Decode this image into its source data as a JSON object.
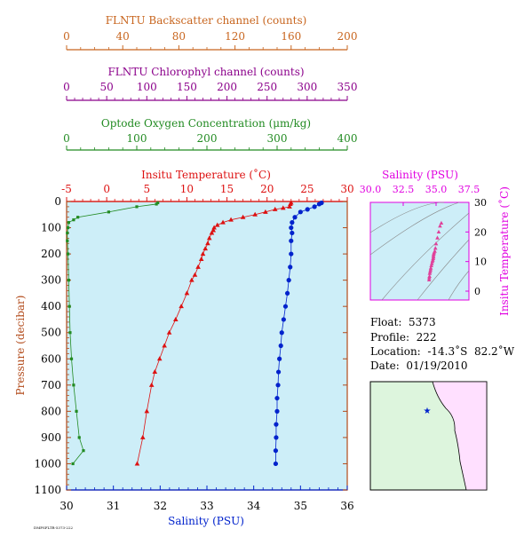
{
  "colors": {
    "backscatter": "#c8651e",
    "chlorophyll": "#8b008b",
    "oxygen": "#228b22",
    "temperature": "#dd1111",
    "salinity": "#0022cc",
    "pressure": "#b24a1a",
    "ts_axis": "#e000e0",
    "ts_points": "#e0409a",
    "plot_bg": "#cdeef8",
    "land": "#ddf5dd",
    "ocean": "#ffe0ff"
  },
  "info": {
    "float": "Float:  5373",
    "profile": "Profile:  222",
    "location": "Location:  -14.3˚S  82.2˚W",
    "date": "Date:  01/19/2010"
  },
  "footer": "DMPSFLTR-5373-222",
  "chart_data": [
    {
      "type": "axis",
      "title": "FLNTU Backscatter channel (counts)",
      "ticks": [
        "0",
        "40",
        "80",
        "120",
        "160",
        "200"
      ],
      "range": [
        0,
        200
      ]
    },
    {
      "type": "axis",
      "title": "FLNTU Chlorophyl channel (counts)",
      "ticks": [
        "0",
        "50",
        "100",
        "150",
        "200",
        "250",
        "300",
        "350"
      ],
      "range": [
        0,
        350
      ]
    },
    {
      "type": "line",
      "title": "Optode Oxygen Concentration (μm/kg)",
      "ticks": [
        "0",
        "100",
        "200",
        "300",
        "400"
      ],
      "range": [
        0,
        400
      ],
      "pressure": [
        5,
        10,
        20,
        40,
        60,
        70,
        80,
        100,
        120,
        150,
        200,
        300,
        400,
        500,
        600,
        700,
        800,
        900,
        950,
        1000
      ],
      "values": [
        130,
        128,
        100,
        60,
        16,
        10,
        3,
        2,
        1,
        1,
        2,
        3,
        4,
        5,
        7,
        10,
        14,
        18,
        24,
        9
      ]
    },
    {
      "type": "line",
      "title": "Insitu Temperature (˚C)",
      "ticks": [
        "-5",
        "0",
        "5",
        "10",
        "15",
        "20",
        "25",
        "30"
      ],
      "range": [
        -5,
        30
      ],
      "pressure": [
        5,
        10,
        20,
        25,
        30,
        40,
        50,
        60,
        70,
        80,
        90,
        100,
        110,
        120,
        140,
        160,
        180,
        200,
        220,
        250,
        280,
        300,
        350,
        400,
        450,
        500,
        550,
        600,
        650,
        700,
        800,
        900,
        1000
      ],
      "values": [
        23.0,
        22.9,
        22.8,
        22.0,
        21.0,
        19.8,
        18.5,
        17.0,
        15.5,
        14.5,
        13.8,
        13.4,
        13.3,
        13.1,
        12.8,
        12.6,
        12.3,
        12.0,
        11.8,
        11.4,
        11.0,
        10.6,
        10.0,
        9.3,
        8.6,
        7.8,
        7.2,
        6.6,
        6.0,
        5.6,
        5.0,
        4.5,
        3.8
      ]
    },
    {
      "type": "line",
      "title": "Salinity (PSU)",
      "ticks": [
        "30",
        "31",
        "32",
        "33",
        "34",
        "35",
        "36"
      ],
      "range": [
        30,
        36
      ],
      "pressure": [
        5,
        10,
        20,
        30,
        40,
        60,
        80,
        100,
        120,
        150,
        200,
        250,
        300,
        350,
        400,
        450,
        500,
        550,
        600,
        650,
        700,
        750,
        800,
        850,
        900,
        950,
        1000
      ],
      "values": [
        35.45,
        35.4,
        35.3,
        35.15,
        35.0,
        34.88,
        34.82,
        34.8,
        34.82,
        34.8,
        34.8,
        34.78,
        34.75,
        34.72,
        34.68,
        34.64,
        34.6,
        34.58,
        34.55,
        34.53,
        34.52,
        34.5,
        34.5,
        34.48,
        34.48,
        34.47,
        34.47
      ]
    },
    {
      "type": "axis",
      "title": "Pressure (decibar)",
      "ticks": [
        "0",
        "100",
        "200",
        "300",
        "400",
        "500",
        "600",
        "700",
        "800",
        "900",
        "1000",
        "1100"
      ],
      "range": [
        0,
        1100
      ]
    },
    {
      "type": "scatter",
      "title": "Salinity (PSU)",
      "xlabel": "Salinity (PSU)",
      "ylabel": "Insitu Temperature (˚C)",
      "xticks": [
        "30.0",
        "32.5",
        "35.0",
        "37.5"
      ],
      "yticks": [
        "0",
        "10",
        "20",
        "30"
      ],
      "xlim": [
        30,
        37.5
      ],
      "ylim": [
        -3,
        30
      ],
      "x": [
        35.4,
        35.3,
        35.2,
        35.1,
        35.0,
        34.95,
        34.9,
        34.85,
        34.82,
        34.8,
        34.8,
        34.78,
        34.75,
        34.72,
        34.68,
        34.64,
        34.6,
        34.58,
        34.55,
        34.52,
        34.5,
        34.48,
        34.47
      ],
      "y": [
        23.0,
        22.0,
        20.0,
        18.0,
        16.0,
        14.5,
        13.5,
        13.0,
        12.5,
        12.0,
        11.5,
        11.0,
        10.5,
        10.0,
        9.3,
        8.6,
        7.8,
        7.2,
        6.6,
        6.0,
        5.0,
        4.5,
        3.8
      ]
    }
  ]
}
